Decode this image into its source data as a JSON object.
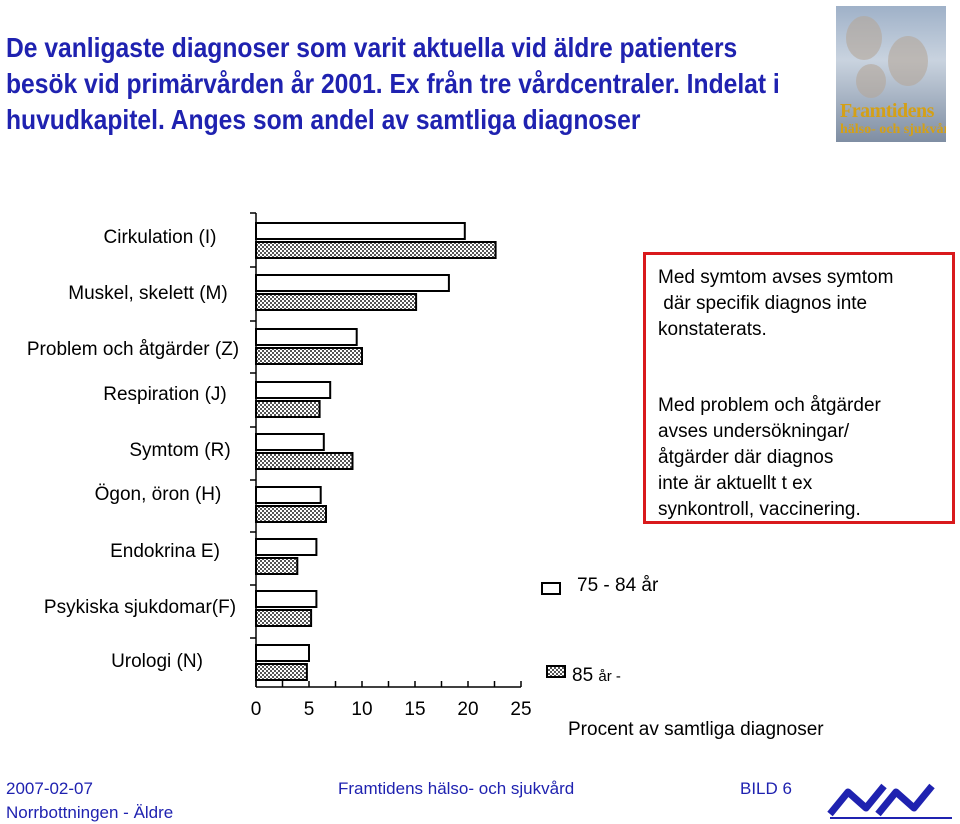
{
  "title": {
    "line1": "De vanligaste diagnoser som varit aktuella vid äldre patienters",
    "line2": "besök vid primärvården år 2001. Ex från tre vårdcentraler. Indelat i",
    "line3": "huvudkapitel. Anges som andel av samtliga diagnoser"
  },
  "logo": {
    "line1": "Framtidens",
    "line2": "hälso- och sjukvård"
  },
  "chart_data": {
    "type": "bar",
    "orientation": "horizontal",
    "categories": [
      "Cirkulation (I)",
      "Muskel, skelett (M)",
      "Problem och åtgärder (Z)",
      "Respiration (J)",
      "Symtom (R)",
      "Ögon, öron (H)",
      "Endokrina E)",
      "Psykiska sjukdomar(F)",
      "Urologi (N)"
    ],
    "series": [
      {
        "name": "75 - 84 år",
        "values": [
          19.7,
          18.2,
          9.5,
          7.0,
          6.4,
          6.1,
          5.7,
          5.7,
          5.0
        ],
        "fill": "#ffffff"
      },
      {
        "name": "85 år -",
        "values": [
          22.6,
          15.1,
          10.0,
          6.0,
          9.1,
          6.6,
          3.9,
          5.2,
          4.8
        ],
        "fill": "pattern"
      }
    ],
    "xticks": [
      "0",
      "5",
      "10",
      "15",
      "20",
      "25"
    ],
    "xlim": [
      0,
      25
    ],
    "xlabel": "Procent av samtliga diagnoser",
    "grid": false,
    "legend_position": "bottom-right"
  },
  "legend": {
    "item1": "75 - 84 år",
    "item2_main": "85",
    "item2_small": "år -"
  },
  "notes": {
    "n1": [
      "Med symtom avses symtom",
      " där specifik diagnos inte",
      "konstaterats."
    ],
    "n2": [
      "Med problem och åtgärder",
      "avses undersökningar/",
      "åtgärder där diagnos",
      "inte är aktuellt t ex",
      "synkontroll, vaccinering."
    ]
  },
  "footer": {
    "date": "2007-02-07",
    "org": "Norrbottningen - Äldre",
    "center": "Framtidens hälso- och sjukvård",
    "slide": "BILD 6"
  },
  "colors": {
    "title": "#1f22b0",
    "note_border": "#d9191c",
    "footer": "#1f22b0",
    "logo_text": "#d4a017"
  }
}
